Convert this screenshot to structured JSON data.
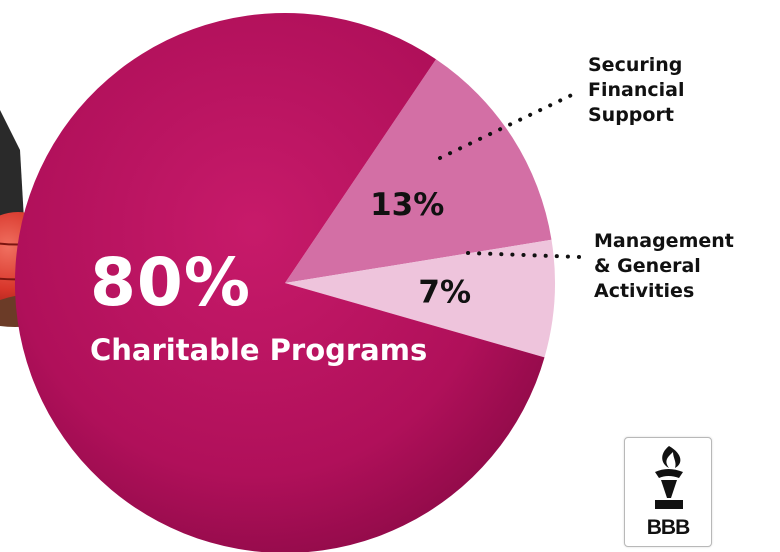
{
  "chart_data": {
    "type": "pie",
    "slices": [
      {
        "label": "Charitable Programs",
        "value": 80,
        "pct_label": "80%",
        "color": "#b8125f"
      },
      {
        "label": "Securing Financial Support",
        "value": 13,
        "pct_label": "13%",
        "color": "#d36fa5"
      },
      {
        "label": "Management & General Activities",
        "value": 7,
        "pct_label": "7%",
        "color": "#eec4dc"
      }
    ]
  },
  "callouts": {
    "financial": [
      "Securing",
      "Financial",
      "Support"
    ],
    "management": [
      "Management",
      "& General",
      "Activities"
    ]
  },
  "main_label": {
    "percent": "80%",
    "text": "Charitable Programs"
  },
  "logo": {
    "text": "BBB"
  },
  "colors": {
    "sleeve": "#2a2a2a",
    "ball": "#d8362b",
    "hand": "#6b3b27"
  }
}
